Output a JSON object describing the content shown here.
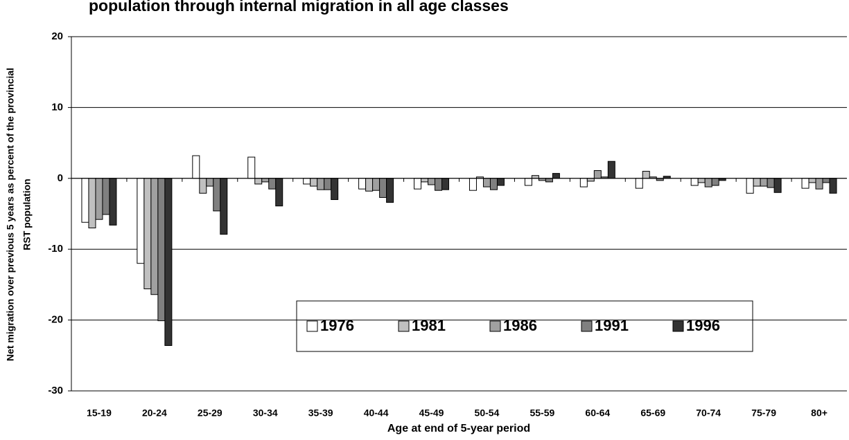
{
  "chart_data": {
    "type": "bar",
    "title": "population through internal migration in all age classes",
    "y_label": [
      "Net migration over previous 5 years as percent of the provincial",
      "RST population"
    ],
    "x_label": "Age at end of 5-year period",
    "categories": [
      "15-19",
      "20-24",
      "25-29",
      "30-34",
      "35-39",
      "40-44",
      "45-49",
      "50-54",
      "55-59",
      "60-64",
      "65-69",
      "70-74",
      "75-79",
      "80+"
    ],
    "series": [
      {
        "name": "1976",
        "color": "#ffffff",
        "values": [
          -6.2,
          -12.0,
          3.2,
          3.0,
          -0.8,
          -1.5,
          -1.5,
          -1.7,
          -1.0,
          -1.2,
          -1.4,
          -1.0,
          -2.1,
          -1.4
        ]
      },
      {
        "name": "1981",
        "color": "#c0c0c0",
        "values": [
          -7.0,
          -15.6,
          -2.1,
          -0.8,
          -1.1,
          -1.8,
          -0.5,
          0.2,
          0.4,
          -0.4,
          1.0,
          -0.6,
          -1.1,
          -0.6
        ]
      },
      {
        "name": "1986",
        "color": "#a0a0a0",
        "values": [
          -5.8,
          -16.4,
          -1.1,
          -0.5,
          -1.6,
          -1.7,
          -0.9,
          -1.2,
          -0.3,
          1.1,
          0.2,
          -1.2,
          -1.1,
          -1.5
        ]
      },
      {
        "name": "1991",
        "color": "#808080",
        "values": [
          -5.1,
          -20.1,
          -4.6,
          -1.5,
          -1.6,
          -2.7,
          -1.7,
          -1.6,
          -0.5,
          0.2,
          -0.3,
          -1.0,
          -1.3,
          -0.6
        ]
      },
      {
        "name": "1996",
        "color": "#333333",
        "values": [
          -6.6,
          -23.6,
          -7.9,
          -3.9,
          -3.0,
          -3.4,
          -1.6,
          -1.0,
          0.7,
          2.4,
          0.3,
          -0.3,
          -2.0,
          -2.1
        ]
      }
    ],
    "ylim": [
      -30,
      20
    ],
    "yticks": [
      -30,
      -20,
      -10,
      0,
      10,
      20
    ],
    "grid": true
  }
}
